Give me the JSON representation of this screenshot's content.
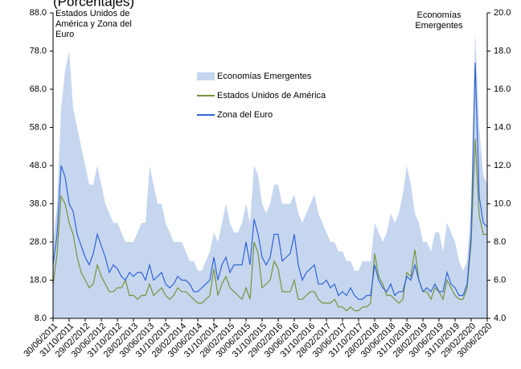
{
  "chart_data": {
    "type": "line",
    "title": "(Porcentajes)",
    "ylabel_lines": [
      "Estados Unidos de",
      "América y Zona del",
      "Euro"
    ],
    "y2label_lines": [
      "Economías",
      "Emergentes"
    ],
    "categories": [
      "30/06/2011",
      null,
      null,
      null,
      "31/10/2011",
      null,
      null,
      null,
      "29/02/2012",
      null,
      null,
      null,
      "30/06/2012",
      null,
      null,
      null,
      "31/10/2012",
      null,
      null,
      null,
      "28/02/2013",
      null,
      null,
      null,
      "30/06/2013",
      null,
      null,
      null,
      "31/10/2013",
      null,
      null,
      null,
      "28/02/2014",
      null,
      null,
      null,
      "30/06/2014",
      null,
      null,
      null,
      "31/10/2014",
      null,
      null,
      null,
      "28/02/2015",
      null,
      null,
      null,
      "30/06/2015",
      null,
      null,
      null,
      "31/10/2015",
      null,
      null,
      null,
      "29/02/2016",
      null,
      null,
      null,
      "30/06/2016",
      null,
      null,
      null,
      "31/10/2016",
      null,
      null,
      null,
      "28/02/2017",
      null,
      null,
      null,
      "30/06/2017",
      null,
      null,
      null,
      "31/10/2017",
      null,
      null,
      null,
      "28/02/2018",
      null,
      null,
      null,
      "30/06/2018",
      null,
      null,
      null,
      "31/10/2018",
      null,
      null,
      null,
      "28/02/2019",
      null,
      null,
      null,
      "30/06/2019",
      null,
      null,
      null,
      "31/10/2019",
      null,
      null,
      null,
      "29/02/2020",
      null,
      null,
      null,
      "30/06/2020"
    ],
    "series": [
      {
        "name": "Economías Emergentes",
        "kind": "area",
        "axis": "y2",
        "color": "#c6d6ef",
        "values": [
          8,
          10,
          15,
          17,
          18,
          15,
          14,
          13,
          12,
          11,
          11,
          12,
          11,
          10,
          9.5,
          9,
          9,
          8.5,
          8,
          8,
          8,
          8.5,
          9,
          9,
          12,
          11,
          10,
          10,
          9,
          8.5,
          8,
          8,
          8,
          7.5,
          7,
          7,
          6.5,
          6.5,
          7,
          7.5,
          8.5,
          8,
          9,
          10,
          9,
          8.5,
          8.5,
          9,
          10,
          9,
          12,
          11.5,
          10,
          9.5,
          10,
          11,
          11,
          10,
          10,
          10,
          10.5,
          9.5,
          9,
          9.5,
          10,
          10.5,
          9.5,
          9,
          8.5,
          8,
          8,
          7.5,
          7.5,
          7,
          7,
          6.5,
          6.5,
          7,
          7,
          7,
          9,
          8.5,
          8,
          8.5,
          9.5,
          9,
          9.5,
          10.5,
          12,
          11,
          9.5,
          9,
          8,
          8,
          7.5,
          8.5,
          8.5,
          7.5,
          9,
          8.5,
          8,
          7,
          6.5,
          7,
          10,
          19,
          14,
          11.5,
          11
        ]
      },
      {
        "name": "Estados Unidos de América",
        "kind": "line",
        "color": "#77933c",
        "values": [
          17,
          25,
          40,
          38,
          33,
          30,
          24,
          20,
          18,
          16,
          17,
          22,
          19,
          17,
          15,
          15,
          16,
          16,
          18,
          14,
          14,
          13,
          14,
          14,
          17,
          14,
          15,
          16,
          14,
          13,
          14,
          16,
          15,
          15,
          14,
          13,
          12,
          12,
          13,
          14,
          21,
          14,
          17,
          19,
          16,
          15,
          14,
          13,
          16,
          13,
          28,
          25,
          16,
          17,
          18,
          23,
          21,
          15,
          15,
          15,
          18,
          13,
          13,
          14,
          15,
          15,
          13,
          12,
          12,
          12,
          13,
          11,
          11,
          10,
          11,
          10,
          10,
          11,
          11,
          12,
          25,
          19,
          17,
          14,
          14,
          13,
          12,
          13,
          20,
          19,
          26,
          18,
          15,
          15,
          13,
          16,
          15,
          13,
          18,
          16,
          14,
          13,
          13,
          16,
          28,
          55,
          35,
          30,
          30
        ]
      },
      {
        "name": "Zona del Euro",
        "kind": "line",
        "color": "#2f63d6",
        "values": [
          22,
          30,
          48,
          45,
          38,
          36,
          30,
          27,
          24,
          22,
          25,
          30,
          27,
          24,
          20,
          22,
          21,
          19,
          18,
          20,
          19,
          20,
          20,
          18,
          22,
          18,
          19,
          20,
          17,
          16,
          17,
          19,
          18,
          18,
          17,
          15,
          15,
          16,
          17,
          18,
          24,
          18,
          22,
          24,
          20,
          22,
          22,
          22,
          28,
          22,
          34,
          30,
          24,
          22,
          24,
          30,
          30,
          23,
          24,
          25,
          30,
          22,
          18,
          20,
          21,
          22,
          17,
          17,
          18,
          16,
          17,
          14,
          15,
          14,
          16,
          14,
          13,
          13,
          14,
          14,
          22,
          18,
          16,
          15,
          17,
          14,
          15,
          15,
          19,
          18,
          22,
          18,
          15,
          16,
          15,
          17,
          15,
          15,
          20,
          17,
          16,
          14,
          14,
          17,
          30,
          75,
          40,
          33,
          32
        ]
      }
    ],
    "ylim": [
      8,
      88
    ],
    "yticks": [
      {
        "value": 8,
        "label": "8.0"
      },
      {
        "value": 18,
        "label": "18.0"
      },
      {
        "value": 28,
        "label": "28.0"
      },
      {
        "value": 38,
        "label": "38.0"
      },
      {
        "value": 48,
        "label": "48.0"
      },
      {
        "value": 58,
        "label": "58.0"
      },
      {
        "value": 68,
        "label": "68.0"
      },
      {
        "value": 78,
        "label": "78.0"
      },
      {
        "value": 88,
        "label": "88.0"
      }
    ],
    "y2lim": [
      4,
      20
    ],
    "y2ticks": [
      {
        "value": 4,
        "label": "4.0"
      },
      {
        "value": 6,
        "label": "6.0"
      },
      {
        "value": 8,
        "label": "8.0"
      },
      {
        "value": 10,
        "label": "10.0"
      },
      {
        "value": 12,
        "label": "12.0"
      },
      {
        "value": 14,
        "label": "14.0"
      },
      {
        "value": 16,
        "label": "16.0"
      },
      {
        "value": 18,
        "label": "18.0"
      },
      {
        "value": 20,
        "label": "20.0"
      }
    ],
    "legend": "upper-center"
  }
}
